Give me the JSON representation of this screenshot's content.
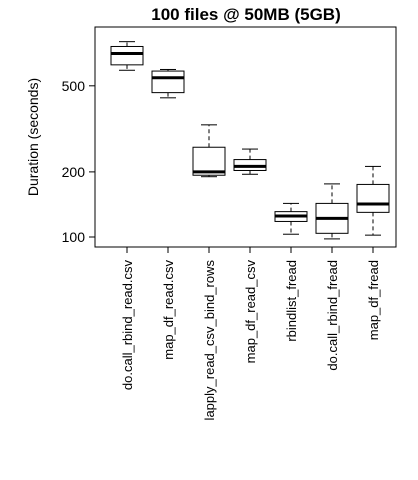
{
  "chart_data": {
    "type": "boxplot",
    "title": "100 files @ 50MB (5GB)",
    "xlabel": "",
    "ylabel": "Duration (seconds)",
    "y_scale": "log",
    "ylim": [
      90,
      1000
    ],
    "y_ticks": [
      100,
      200,
      500
    ],
    "y_tick_labels": [
      "100",
      "200",
      "500"
    ],
    "grid": false,
    "legend": "none",
    "box_color": "#ffffff",
    "line_color": "#000000",
    "categories": [
      "do.call_rbind_read.csv",
      "map_df_read.csv",
      "lapply_read_csv_bind_rows",
      "map_df_read_csv",
      "rbindlist_fread",
      "do.call_rbind_fread",
      "map_df_fread"
    ],
    "boxes": [
      {
        "whisker_low": 590,
        "q1": 625,
        "median": 705,
        "q3": 760,
        "whisker_high": 800
      },
      {
        "whisker_low": 440,
        "q1": 465,
        "median": 545,
        "q3": 585,
        "whisker_high": 595
      },
      {
        "whisker_low": 190,
        "q1": 193,
        "median": 200,
        "q3": 260,
        "whisker_high": 330
      },
      {
        "whisker_low": 195,
        "q1": 203,
        "median": 212,
        "q3": 228,
        "whisker_high": 255
      },
      {
        "whisker_low": 103,
        "q1": 118,
        "median": 125,
        "q3": 131,
        "whisker_high": 143
      },
      {
        "whisker_low": 98,
        "q1": 104,
        "median": 122,
        "q3": 143,
        "whisker_high": 176
      },
      {
        "whisker_low": 102,
        "q1": 130,
        "median": 142,
        "q3": 175,
        "whisker_high": 212
      }
    ]
  }
}
